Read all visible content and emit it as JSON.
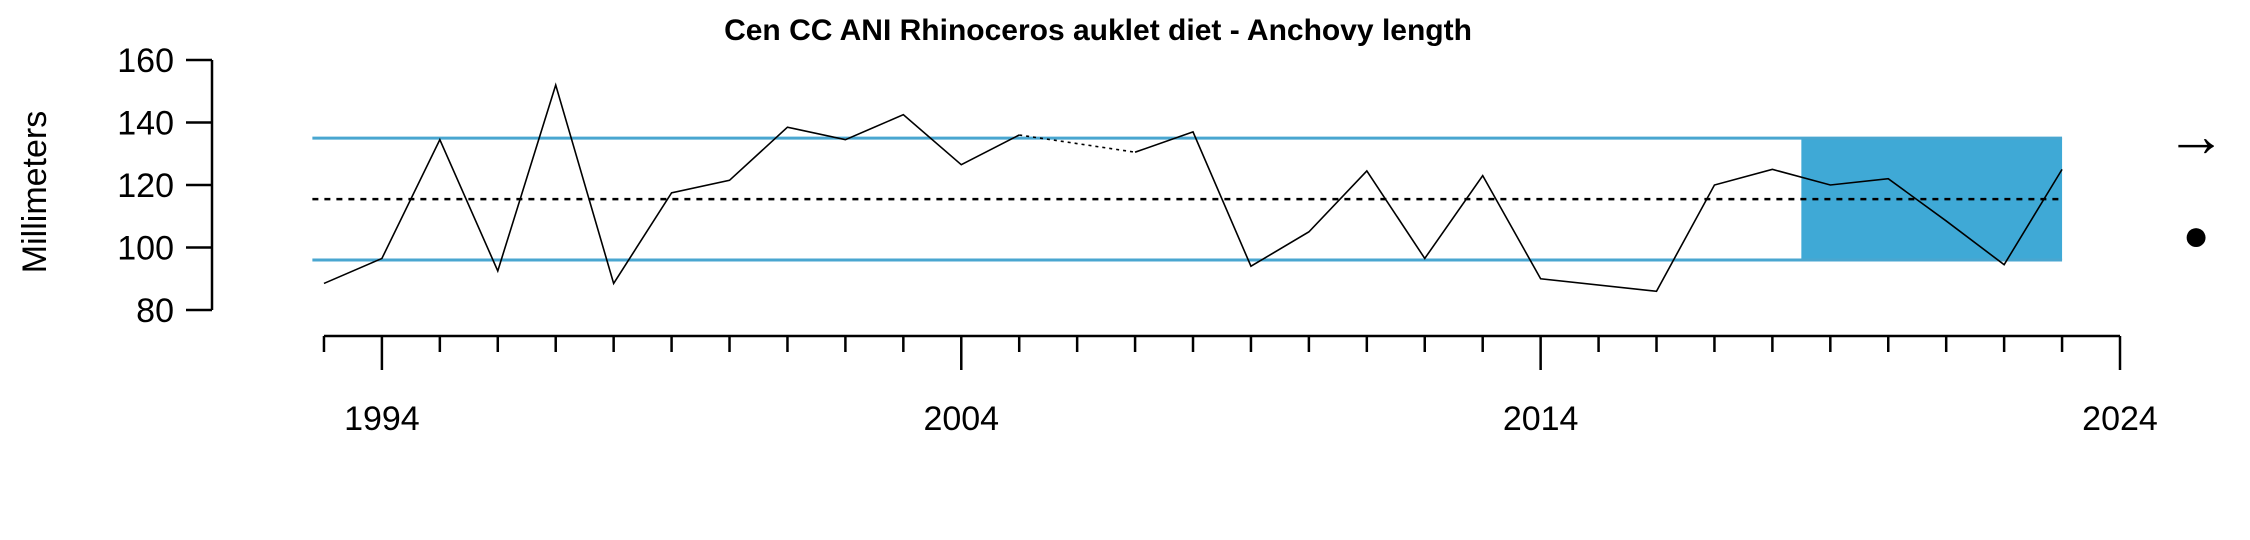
{
  "chart_data": {
    "type": "line",
    "title": "Cen CC ANI Rhinoceros auklet diet - Anchovy length",
    "ylabel": "Millimeters",
    "xlabel": "",
    "xlim": [
      1992.5,
      2024
    ],
    "ylim": [
      80,
      160
    ],
    "x_ticks": [
      1994,
      2004,
      2014,
      2024
    ],
    "y_ticks": [
      80,
      100,
      120,
      140,
      160
    ],
    "series": [
      {
        "x": [
          1993,
          1994,
          1995,
          1996,
          1997,
          1998,
          1999,
          2000,
          2001,
          2002,
          2003,
          2004,
          2005,
          2007,
          2008,
          2009,
          2010,
          2011,
          2012,
          2013,
          2014,
          2016,
          2017,
          2018,
          2019,
          2020,
          2021,
          2022,
          2023
        ],
        "values": [
          88.5,
          96.5,
          134.5,
          92.5,
          152,
          88.5,
          117.5,
          121.5,
          138.5,
          134.5,
          142.5,
          126.5,
          136,
          130.5,
          137,
          94,
          105,
          124.5,
          96.5,
          123,
          90,
          86,
          120,
          125,
          120,
          122,
          108.5,
          94.5,
          125
        ],
        "gap_after_index": 12
      }
    ],
    "mean": 115.5,
    "sd_upper": 135,
    "sd_lower": 96,
    "shaded_x_range": [
      2019,
      2023
    ],
    "colors": {
      "sd_line": "#49a6d0",
      "shade": "#3fa9d6",
      "line": "#000000"
    },
    "indicators": {
      "trend": "→",
      "status": "●"
    }
  }
}
